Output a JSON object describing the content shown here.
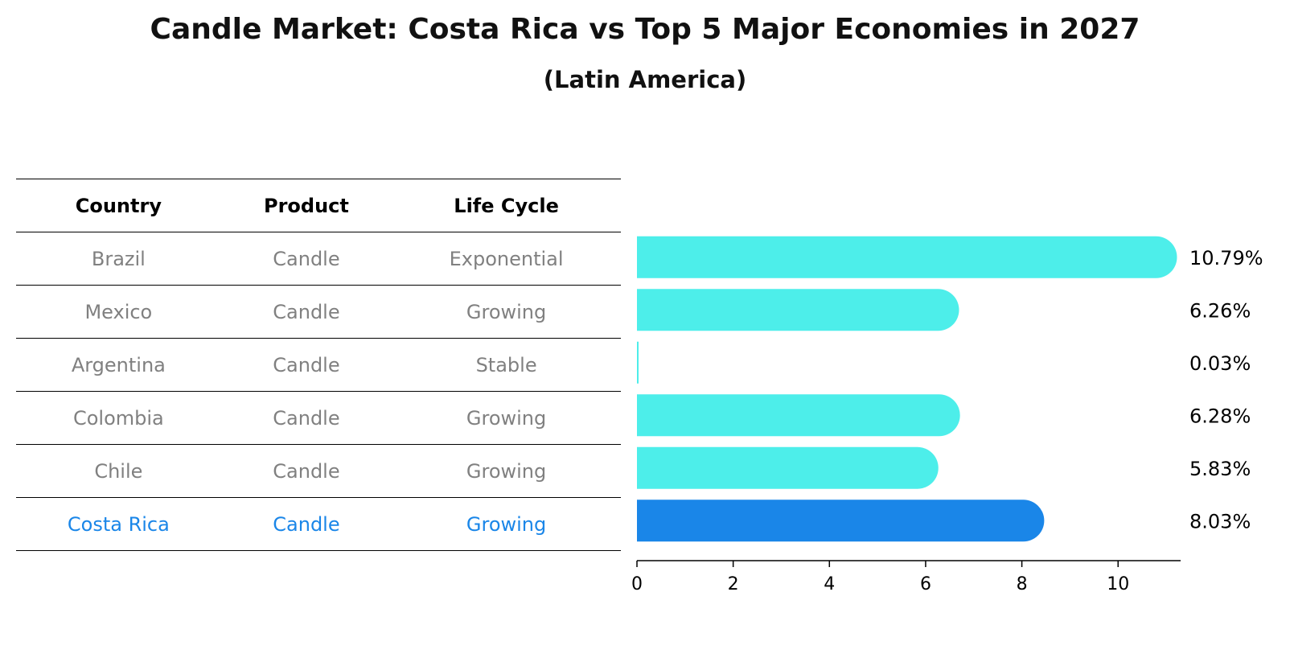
{
  "header": {
    "title": "Candle Market: Costa Rica vs Top 5 Major Economies in 2027",
    "subtitle": "(Latin America)"
  },
  "table": {
    "columns": [
      "Country",
      "Product",
      "Life Cycle"
    ],
    "rows": [
      {
        "country": "Brazil",
        "product": "Candle",
        "life_cycle": "Exponential"
      },
      {
        "country": "Mexico",
        "product": "Candle",
        "life_cycle": "Growing"
      },
      {
        "country": "Argentina",
        "product": "Candle",
        "life_cycle": "Stable"
      },
      {
        "country": "Colombia",
        "product": "Candle",
        "life_cycle": "Growing"
      },
      {
        "country": "Chile",
        "product": "Candle",
        "life_cycle": "Growing"
      },
      {
        "country": "Costa Rica",
        "product": "Candle",
        "life_cycle": "Growing",
        "highlight": true
      }
    ]
  },
  "colors": {
    "bar": "#4deeea",
    "highlight": "#1a86e8",
    "muted_text": "#808080"
  },
  "chart_data": {
    "type": "bar",
    "orientation": "horizontal",
    "title": "Candle Market: Costa Rica vs Top 5 Major Economies in 2027",
    "subtitle": "(Latin America)",
    "categories": [
      "Brazil",
      "Mexico",
      "Argentina",
      "Colombia",
      "Chile",
      "Costa Rica"
    ],
    "values": [
      10.79,
      6.26,
      0.03,
      6.28,
      5.83,
      8.03
    ],
    "value_labels": [
      "10.79%",
      "6.26%",
      "0.03%",
      "6.28%",
      "5.83%",
      "8.03%"
    ],
    "highlight_index": 5,
    "xlim": [
      0,
      11.3
    ],
    "xticks": [
      0,
      2,
      4,
      6,
      8,
      10
    ],
    "xlabel": "",
    "ylabel": "",
    "grid": false,
    "legend": "none"
  }
}
